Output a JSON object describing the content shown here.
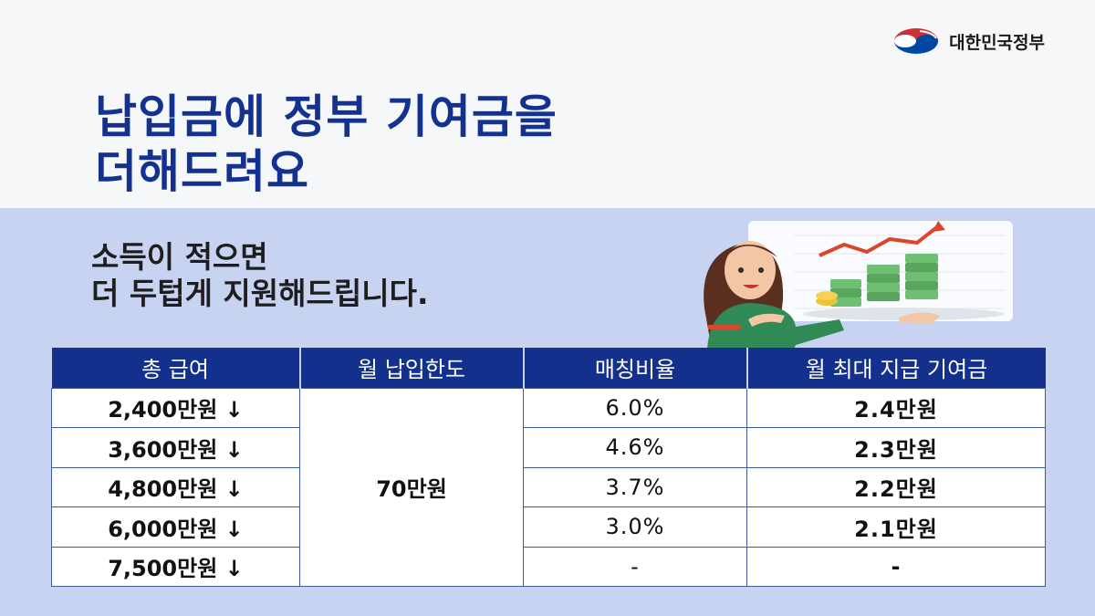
{
  "header": {
    "gov_name": "대한민국정부",
    "headline_line1": "납입금에 정부 기여금을",
    "headline_line2": "더해드려요"
  },
  "subtitle": {
    "line1": "소득이 적으면",
    "line2": "더 두텁게 지원해드립니다."
  },
  "table": {
    "headers": [
      "총 급여",
      "월 납입한도",
      "매칭비율",
      "월 최대 지급 기여금"
    ],
    "monthly_limit": "70만원",
    "rows": [
      {
        "income": "2,400만원 ↓",
        "rate": "6.0%",
        "max": "2.4만원"
      },
      {
        "income": "3,600만원 ↓",
        "rate": "4.6%",
        "max": "2.3만원"
      },
      {
        "income": "4,800만원 ↓",
        "rate": "3.7%",
        "max": "2.2만원"
      },
      {
        "income": "6,000만원 ↓",
        "rate": "3.0%",
        "max": "2.1만원"
      },
      {
        "income": "7,500만원 ↓",
        "rate": "-",
        "max": "-"
      }
    ]
  },
  "colors": {
    "navy": "#13318f",
    "lavender": "#c8d2f1",
    "taegeuk_red": "#cd2e3a",
    "taegeuk_blue": "#0047a0"
  },
  "icons": [
    "taegeuk-logo-icon",
    "woman-illustration",
    "money-stack-icon",
    "growth-arrow-icon"
  ]
}
